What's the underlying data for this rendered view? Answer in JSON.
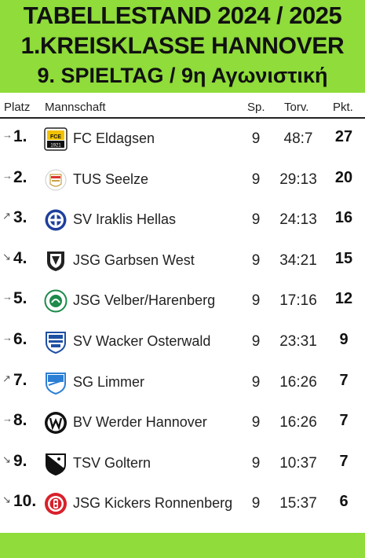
{
  "header": {
    "line1": "TABELLESTAND 2024 / 2025",
    "line2": "1.KREISKLASSE HANNOVER",
    "line3": "9. SPIELTAG / 9η Αγωνιστική"
  },
  "columns": {
    "platz": "Platz",
    "mannschaft": "Mannschaft",
    "sp": "Sp.",
    "torv": "Torv.",
    "pkt": "Pkt."
  },
  "colors": {
    "accent": "#8fdc3a",
    "text": "#111111"
  },
  "rows": [
    {
      "trend": "→",
      "trend_icon": "arrow-right-icon",
      "rank": "1.",
      "team": "FC Eldagsen",
      "sp": "9",
      "torv": "48:7",
      "pkt": "27",
      "logo": "fc-eldagsen-logo",
      "logo_text": "FCE"
    },
    {
      "trend": "→",
      "trend_icon": "arrow-right-icon",
      "rank": "2.",
      "team": "TUS Seelze",
      "sp": "9",
      "torv": "29:13",
      "pkt": "20",
      "logo": "tus-seelze-logo",
      "logo_text": ""
    },
    {
      "trend": "↗",
      "trend_icon": "arrow-up-icon",
      "rank": "3.",
      "team": "SV Iraklis Hellas",
      "sp": "9",
      "torv": "24:13",
      "pkt": "16",
      "logo": "sv-iraklis-hellas-logo",
      "logo_text": ""
    },
    {
      "trend": "↘",
      "trend_icon": "arrow-down-icon",
      "rank": "4.",
      "team": "JSG Garbsen West",
      "sp": "9",
      "torv": "34:21",
      "pkt": "15",
      "logo": "jsg-garbsen-west-logo",
      "logo_text": ""
    },
    {
      "trend": "→",
      "trend_icon": "arrow-right-icon",
      "rank": "5.",
      "team": "JSG Velber/Harenberg",
      "sp": "9",
      "torv": "17:16",
      "pkt": "12",
      "logo": "jsg-velber-harenberg-logo",
      "logo_text": ""
    },
    {
      "trend": "→",
      "trend_icon": "arrow-right-icon",
      "rank": "6.",
      "team": "SV Wacker Osterwald",
      "sp": "9",
      "torv": "23:31",
      "pkt": "9",
      "logo": "sv-wacker-osterwald-logo",
      "logo_text": ""
    },
    {
      "trend": "↗",
      "trend_icon": "arrow-up-icon",
      "rank": "7.",
      "team": "SG Limmer",
      "sp": "9",
      "torv": "16:26",
      "pkt": "7",
      "logo": "sg-limmer-logo",
      "logo_text": ""
    },
    {
      "trend": "→",
      "trend_icon": "arrow-right-icon",
      "rank": "8.",
      "team": "BV Werder Hannover",
      "sp": "9",
      "torv": "16:26",
      "pkt": "7",
      "logo": "bv-werder-hannover-logo",
      "logo_text": ""
    },
    {
      "trend": "↘",
      "trend_icon": "arrow-down-icon",
      "rank": "9.",
      "team": "TSV Goltern",
      "sp": "9",
      "torv": "10:37",
      "pkt": "7",
      "logo": "tsv-goltern-logo",
      "logo_text": ""
    },
    {
      "trend": "↘",
      "trend_icon": "arrow-down-icon",
      "rank": "10.",
      "team": "JSG Kickers Ronnenberg",
      "sp": "9",
      "torv": "15:37",
      "pkt": "6",
      "logo": "jsg-kickers-ronnenberg-logo",
      "logo_text": ""
    }
  ]
}
